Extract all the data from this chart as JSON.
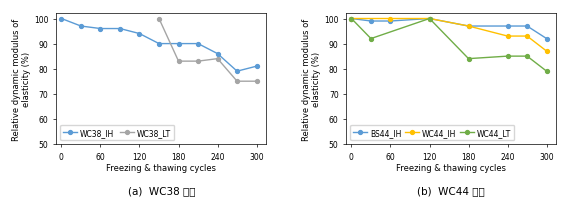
{
  "left": {
    "title": "(a)  WC38 배합",
    "x_IH": [
      0,
      30,
      60,
      90,
      120,
      150,
      180,
      210,
      240,
      270,
      300
    ],
    "x_LT": [
      150,
      180,
      210,
      240,
      270,
      300
    ],
    "WC38_IH": [
      100,
      97,
      96,
      96,
      94,
      90,
      90,
      90,
      86,
      79,
      81
    ],
    "WC38_LT": [
      100,
      83,
      83,
      84,
      75,
      75
    ],
    "WC38_IH_color": "#5B9BD5",
    "WC38_LT_color": "#A5A5A5",
    "ylim": [
      50,
      102
    ],
    "yticks": [
      50,
      60,
      70,
      80,
      90,
      100
    ]
  },
  "right": {
    "title": "(b)  WC44 배합",
    "x_BS44": [
      0,
      30,
      60,
      120,
      180,
      240,
      270,
      300
    ],
    "x_WC44_IH": [
      0,
      60,
      120,
      180,
      240,
      270,
      300
    ],
    "x_WC44_LT": [
      0,
      30,
      120,
      180,
      240,
      270,
      300
    ],
    "BS44_IH": [
      100,
      99,
      99,
      100,
      97,
      97,
      97,
      92
    ],
    "WC44_IH": [
      100,
      100,
      100,
      97,
      93,
      93,
      87
    ],
    "WC44_LT": [
      100,
      92,
      100,
      84,
      85,
      85,
      79
    ],
    "BS44_IH_color": "#5B9BD5",
    "WC44_IH_color": "#FFC000",
    "WC44_LT_color": "#70AD47",
    "ylim": [
      50,
      102
    ],
    "yticks": [
      50,
      60,
      70,
      80,
      90,
      100
    ]
  },
  "xlabel": "Freezing & thawing cycles",
  "ylabel": "Relative dynamic modulus of\nelasticity (%)",
  "xticks": [
    0,
    60,
    120,
    180,
    240,
    300
  ],
  "marker": "o",
  "markersize": 2.8,
  "linewidth": 1.0,
  "fontsize_axis_label": 6.0,
  "fontsize_tick": 5.5,
  "fontsize_legend": 5.5,
  "fontsize_title": 7.5,
  "legend_loc": "lower left"
}
